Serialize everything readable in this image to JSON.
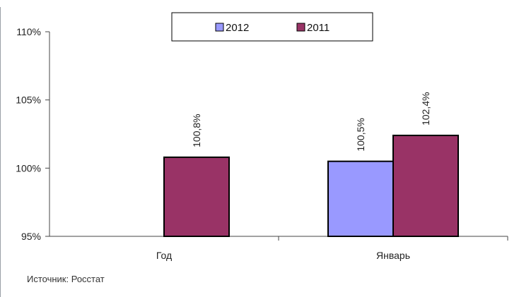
{
  "page": {
    "source": "Источник: Росстат"
  },
  "chart_data": {
    "type": "bar",
    "categories": [
      "Год",
      "Январь"
    ],
    "series": [
      {
        "name": "2012",
        "values": [
          null,
          100.5
        ],
        "color": "#9999ff"
      },
      {
        "name": "2011",
        "values": [
          100.8,
          102.4
        ],
        "color": "#993366"
      }
    ],
    "data_labels": [
      {
        "series": "2012",
        "category": "Январь",
        "text": "100,5%"
      },
      {
        "series": "2011",
        "category": "Год",
        "text": "100,8%"
      },
      {
        "series": "2011",
        "category": "Январь",
        "text": "102,4%"
      }
    ],
    "y_ticks": [
      "95%",
      "100%",
      "105%",
      "110%"
    ],
    "y_tick_values": [
      95,
      100,
      105,
      110
    ],
    "ylim": [
      95,
      110
    ],
    "grid": false,
    "legend_position": "top-center"
  }
}
